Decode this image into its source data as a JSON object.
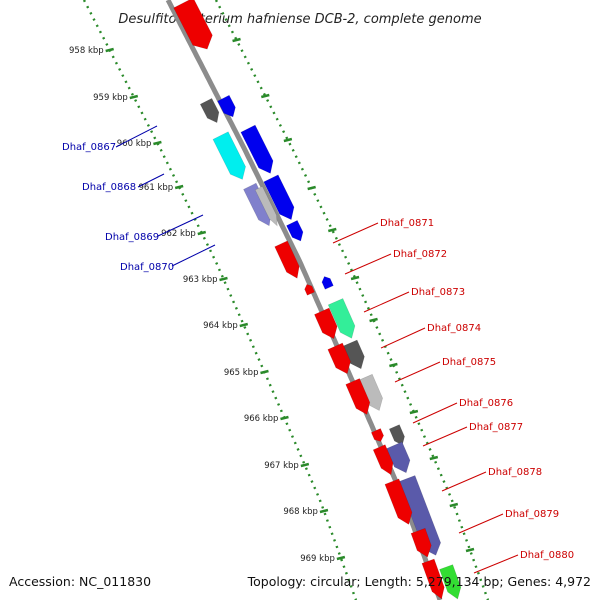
{
  "title": "Desulfitobacterium hafniense DCB-2, complete genome",
  "ticks": [
    "958 kbp",
    "959 kbp",
    "960 kbp",
    "961 kbp",
    "962 kbp",
    "963 kbp",
    "964 kbp",
    "965 kbp",
    "966 kbp",
    "967 kbp",
    "968 kbp",
    "969 kbp"
  ],
  "genes_left": [
    {
      "label": "Dhaf_0867",
      "color": "#0000aa"
    },
    {
      "label": "Dhaf_0868",
      "color": "#0000aa"
    },
    {
      "label": "Dhaf_0869",
      "color": "#0000aa"
    },
    {
      "label": "Dhaf_0870",
      "color": "#0000aa"
    }
  ],
  "genes_right": [
    {
      "label": "Dhaf_0871",
      "color": "#cc0000"
    },
    {
      "label": "Dhaf_0872",
      "color": "#cc0000"
    },
    {
      "label": "Dhaf_0873",
      "color": "#cc0000"
    },
    {
      "label": "Dhaf_0874",
      "color": "#cc0000"
    },
    {
      "label": "Dhaf_0875",
      "color": "#cc0000"
    },
    {
      "label": "Dhaf_0876",
      "color": "#cc0000"
    },
    {
      "label": "Dhaf_0877",
      "color": "#cc0000"
    },
    {
      "label": "Dhaf_0878",
      "color": "#cc0000"
    },
    {
      "label": "Dhaf_0879",
      "color": "#cc0000"
    },
    {
      "label": "Dhaf_0880",
      "color": "#cc0000"
    }
  ],
  "colors": {
    "backbone": "#8c8c8c",
    "tick_ring": "#2a8a2a",
    "red": "#ee0000",
    "blue": "#0000ee",
    "dark_gray": "#555555",
    "light_gray": "#bbbbbb",
    "cyan": "#00eeee",
    "mint": "#33ee99",
    "slate": "#5a5aaa",
    "lavender": "#8080cc",
    "green": "#33dd33"
  },
  "footer": {
    "accession": "Accession: NC_011830",
    "topology": "Topology: circular; Length: 5,279,134 bp; Genes: 4,972"
  }
}
